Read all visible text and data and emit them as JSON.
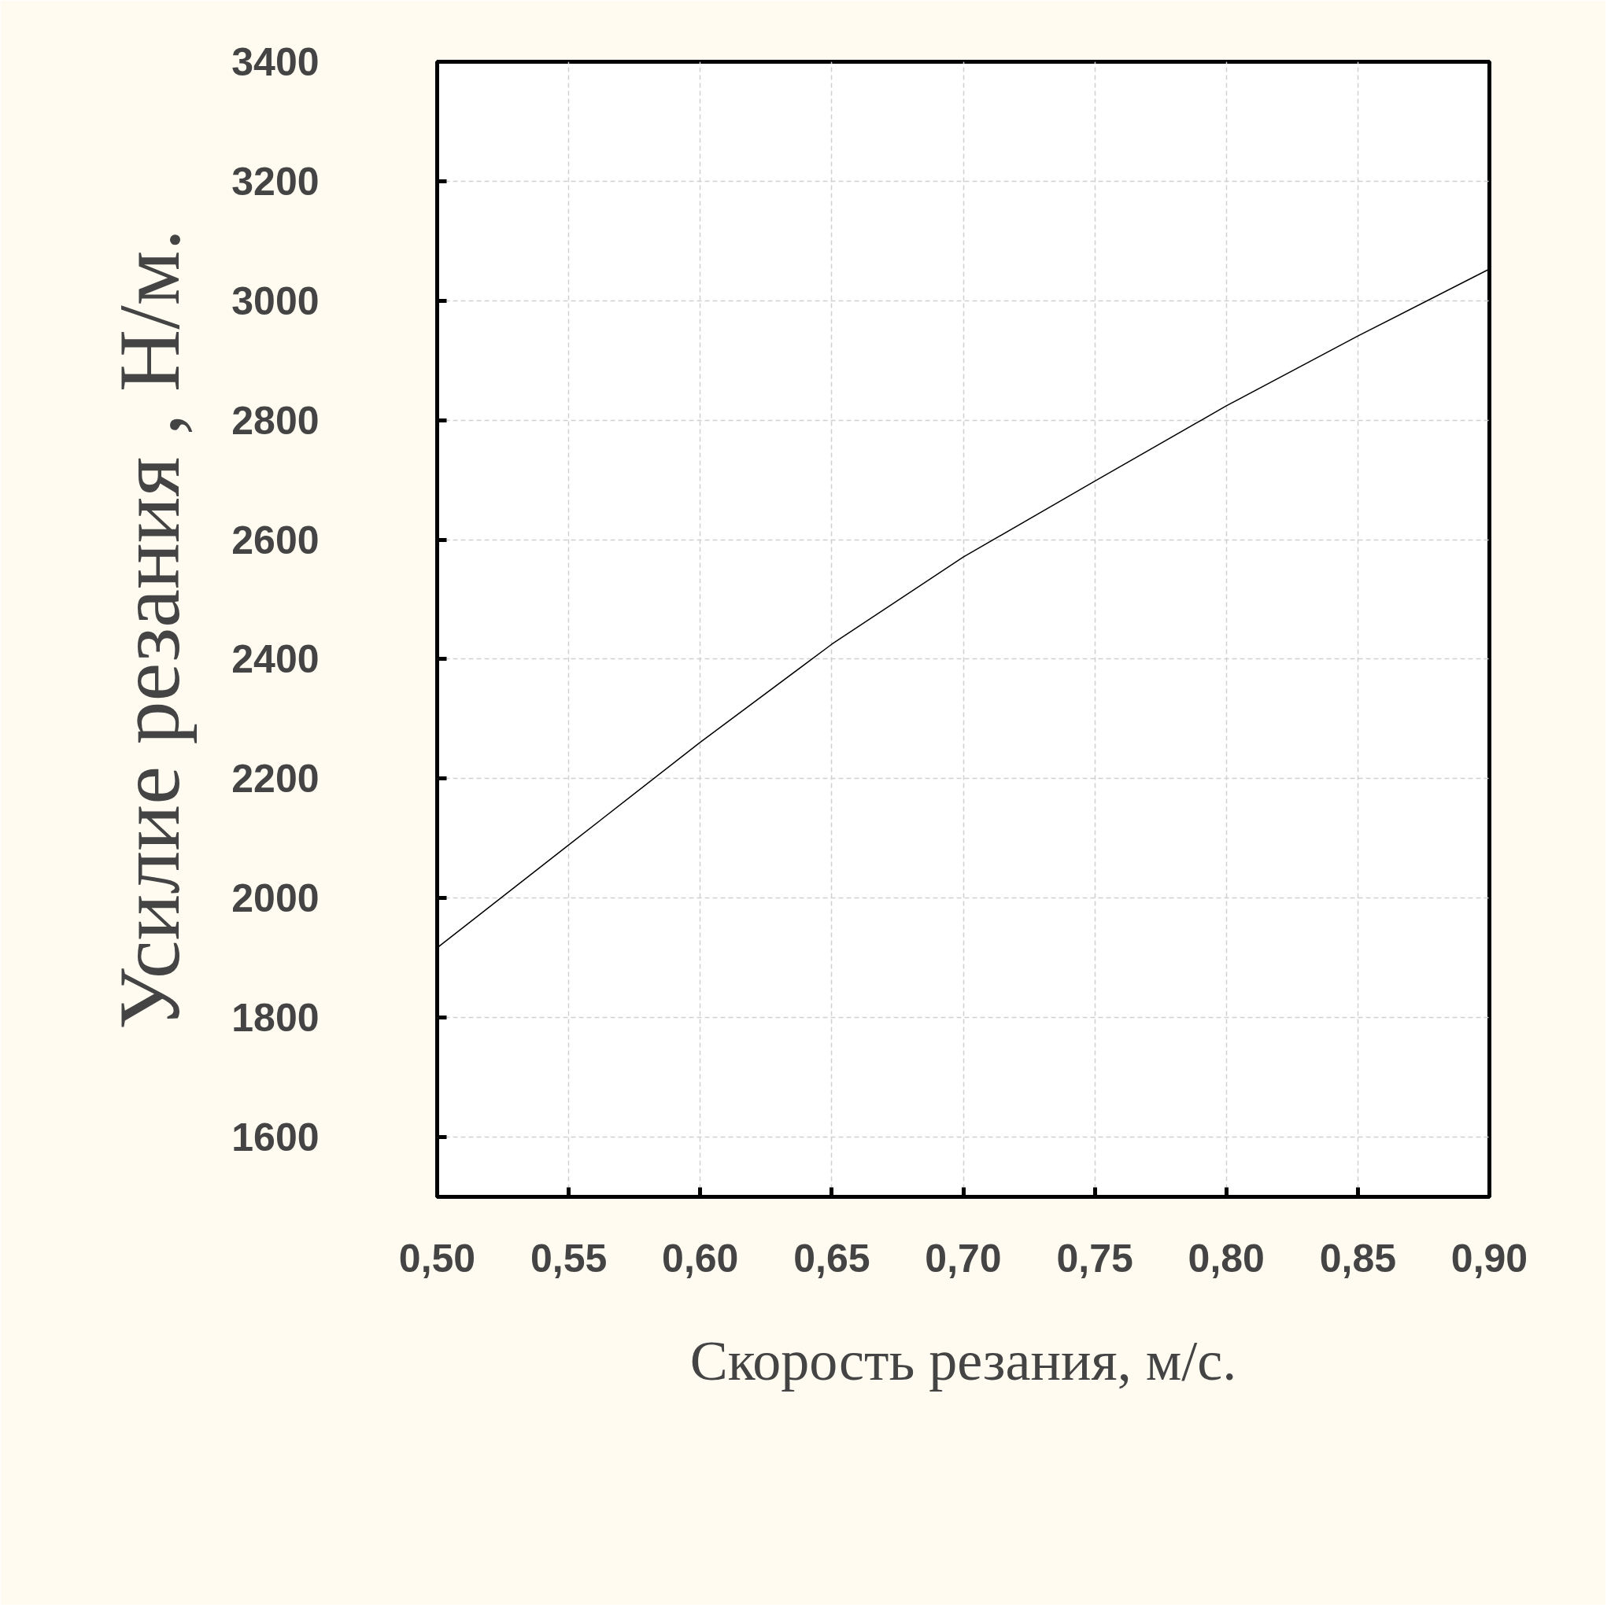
{
  "chart_data": {
    "type": "line",
    "xlabel": "Скорость резания, м/с.",
    "ylabel": "Усилие резания , Н/м.",
    "x": [
      0.5,
      0.55,
      0.6,
      0.65,
      0.7,
      0.75,
      0.8,
      0.85,
      0.9
    ],
    "series": [
      {
        "color": "#000000",
        "values": [
          1917,
          2089,
          2261,
          2425,
          2571,
          2698,
          2824,
          2941,
          3053
        ]
      }
    ],
    "xlim": [
      0.5,
      0.9
    ],
    "xticks": [
      {
        "value": 0.5,
        "label": "0,50"
      },
      {
        "value": 0.55,
        "label": "0,55"
      },
      {
        "value": 0.6,
        "label": "0,60"
      },
      {
        "value": 0.65,
        "label": "0,65"
      },
      {
        "value": 0.7,
        "label": "0,70"
      },
      {
        "value": 0.75,
        "label": "0,75"
      },
      {
        "value": 0.8,
        "label": "0,80"
      },
      {
        "value": 0.85,
        "label": "0,85"
      },
      {
        "value": 0.9,
        "label": "0,90"
      }
    ],
    "ylim": [
      1500,
      3400
    ],
    "yticks": [
      1600,
      1800,
      2000,
      2200,
      2400,
      2600,
      2800,
      3000,
      3200,
      3400
    ],
    "grid": true,
    "marker": "none",
    "line_style": "solid"
  }
}
